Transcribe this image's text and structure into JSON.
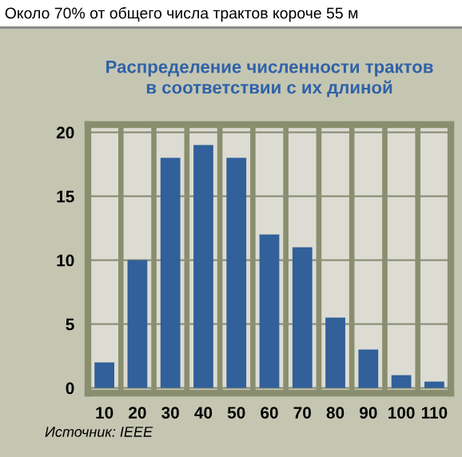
{
  "chart_data": {
    "type": "bar",
    "title": "Распределение численности трактов\nв соответствии с их длиной",
    "categories": [
      "10",
      "20",
      "30",
      "40",
      "50",
      "60",
      "70",
      "80",
      "90",
      "100",
      "110"
    ],
    "values": [
      2,
      10,
      18,
      19,
      18,
      12,
      11,
      5.5,
      3,
      1,
      0.5
    ],
    "color": "#31609a",
    "ylim": [
      -0.4,
      20.6
    ],
    "yticks": [
      0,
      5,
      10,
      15,
      20
    ],
    "grid": "y",
    "annotations": [
      "Около 70% от общего числа трактов короче 55 м",
      "Источник: IEEE"
    ]
  }
}
